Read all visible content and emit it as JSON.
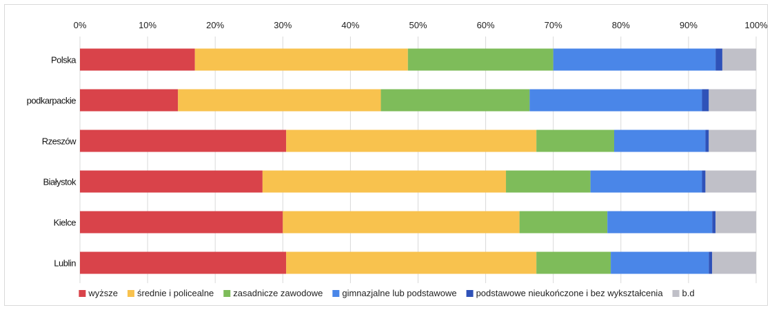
{
  "chart_data": {
    "type": "bar",
    "orientation": "horizontal",
    "stacked": "percent",
    "categories": [
      "Polska",
      "podkarpackie",
      "Rzeszów",
      "Białystok",
      "Kielce",
      "Lublin"
    ],
    "x_ticks": [
      "0%",
      "10%",
      "20%",
      "30%",
      "40%",
      "50%",
      "60%",
      "70%",
      "80%",
      "90%",
      "100%"
    ],
    "xlim": [
      0,
      100
    ],
    "grid": "vertical",
    "legend_position": "bottom",
    "series": [
      {
        "name": "wyższe",
        "color": "#d9434a",
        "values": [
          17,
          14.5,
          30.5,
          27,
          30,
          30.5
        ]
      },
      {
        "name": "średnie i policealne",
        "color": "#f8c24e",
        "values": [
          31.5,
          30,
          37,
          36,
          35,
          37
        ]
      },
      {
        "name": "zasadnicze zawodowe",
        "color": "#7ebc5a",
        "values": [
          21.5,
          22,
          11.5,
          12.5,
          13,
          11
        ]
      },
      {
        "name": "gimnazjalne lub podstawowe",
        "color": "#4a86e8",
        "values": [
          24,
          25.5,
          13.5,
          16.5,
          15.5,
          14.5
        ]
      },
      {
        "name": "podstawowe nieukończone i bez wykształcenia",
        "color": "#2f52b8",
        "values": [
          1,
          1,
          0.5,
          0.5,
          0.5,
          0.5
        ]
      },
      {
        "name": "b.d",
        "color": "#c0c0c8",
        "values": [
          5,
          7,
          7,
          7.5,
          6,
          6.5
        ]
      }
    ]
  }
}
